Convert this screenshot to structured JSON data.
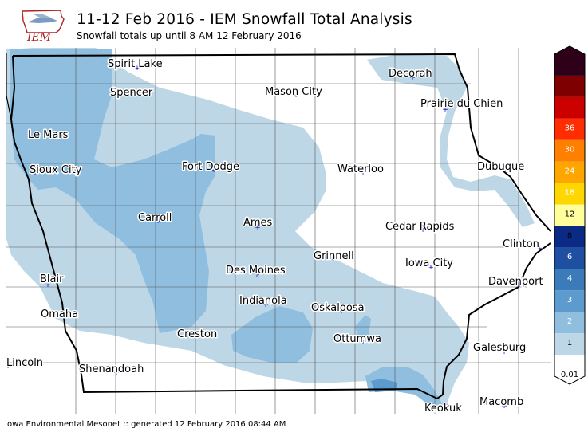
{
  "header": {
    "logo_text": "IEM",
    "title": "11-12 Feb 2016 - IEM Snowfall Total Analysis",
    "subtitle": "Snowfall totals up until 8 AM 12 February 2016"
  },
  "map": {
    "cities": [
      {
        "name": "Spirit Lake",
        "label_id": "city-label-spirit-lake",
        "dot_id": "city-dot-spirit-lake"
      },
      {
        "name": "Decorah",
        "label_id": "city-label-decorah",
        "dot_id": "city-dot-decorah"
      },
      {
        "name": "Spencer",
        "label_id": "city-label-spencer",
        "dot_id": "city-dot-spencer"
      },
      {
        "name": "Mason City",
        "label_id": "city-label-mason-city",
        "dot_id": "city-dot-mason-city"
      },
      {
        "name": "Prairie du Chien",
        "label_id": "city-label-prairie-du-chien",
        "dot_id": "city-dot-prairie-du-chien"
      },
      {
        "name": "Le Mars",
        "label_id": "city-label-le-mars",
        "dot_id": "city-dot-le-mars"
      },
      {
        "name": "Fort Dodge",
        "label_id": "city-label-fort-dodge",
        "dot_id": "city-dot-fort-dodge"
      },
      {
        "name": "Sioux City",
        "label_id": "city-label-sioux-city",
        "dot_id": "city-dot-sioux-city"
      },
      {
        "name": "Waterloo",
        "label_id": "city-label-waterloo",
        "dot_id": "city-dot-waterloo"
      },
      {
        "name": "Dubuque",
        "label_id": "city-label-dubuque",
        "dot_id": "city-dot-dubuque"
      },
      {
        "name": "Carroll",
        "label_id": "city-label-carroll",
        "dot_id": "city-dot-carroll"
      },
      {
        "name": "Ames",
        "label_id": "city-label-ames",
        "dot_id": "city-dot-ames"
      },
      {
        "name": "Cedar Rapids",
        "label_id": "city-label-cedar-rapids",
        "dot_id": "city-dot-cedar-rapids"
      },
      {
        "name": "Clinton",
        "label_id": "city-label-clinton",
        "dot_id": "city-dot-clinton"
      },
      {
        "name": "Grinnell",
        "label_id": "city-label-grinnell",
        "dot_id": "city-dot-grinnell"
      },
      {
        "name": "Iowa City",
        "label_id": "city-label-iowa-city",
        "dot_id": "city-dot-iowa-city"
      },
      {
        "name": "Des Moines",
        "label_id": "city-label-des-moines",
        "dot_id": "city-dot-des-moines"
      },
      {
        "name": "Blair",
        "label_id": "city-label-blair",
        "dot_id": "city-dot-blair"
      },
      {
        "name": "Davenport",
        "label_id": "city-label-davenport",
        "dot_id": "city-dot-davenport"
      },
      {
        "name": "Indianola",
        "label_id": "city-label-indianola",
        "dot_id": "city-dot-indianola"
      },
      {
        "name": "Oskaloosa",
        "label_id": "city-label-oskaloosa",
        "dot_id": "city-dot-oskaloosa"
      },
      {
        "name": "Omaha",
        "label_id": "city-label-omaha",
        "dot_id": "city-dot-omaha"
      },
      {
        "name": "Creston",
        "label_id": "city-label-creston",
        "dot_id": "city-dot-creston"
      },
      {
        "name": "Ottumwa",
        "label_id": "city-label-ottumwa",
        "dot_id": "city-dot-ottumwa"
      },
      {
        "name": "Galesburg",
        "label_id": "city-label-galesburg",
        "dot_id": "city-dot-galesburg"
      },
      {
        "name": "Lincoln",
        "label_id": "city-label-lincoln",
        "dot_id": "city-dot-lincoln"
      },
      {
        "name": "Shenandoah",
        "label_id": "city-label-shenandoah",
        "dot_id": "city-dot-shenandoah"
      },
      {
        "name": "Macomb",
        "label_id": "city-label-macomb",
        "dot_id": "city-dot-macomb"
      },
      {
        "name": "Keokuk",
        "label_id": "city-label-keokuk",
        "dot_id": "city-dot-keokuk"
      }
    ]
  },
  "colorbar": {
    "levels": [
      "0.01",
      "1",
      "2",
      "3",
      "4",
      "6",
      "8",
      "12",
      "18",
      "24",
      "30",
      "36"
    ],
    "colors": [
      "#ffffff",
      "#bed7e7",
      "#8fbedf",
      "#5d9bcf",
      "#3c7bb9",
      "#1f4fa1",
      "#0a2a85",
      "#ffff9c",
      "#ffd700",
      "#ffa500",
      "#ff7f00",
      "#ff2d00",
      "#cd0000",
      "#7f0000",
      "#2e001a"
    ],
    "dark_text_color": "#000000",
    "light_text_color": "#ffffff"
  },
  "footer": {
    "text": "Iowa Environmental Mesonet :: generated 12 February 2016 08:44 AM"
  }
}
